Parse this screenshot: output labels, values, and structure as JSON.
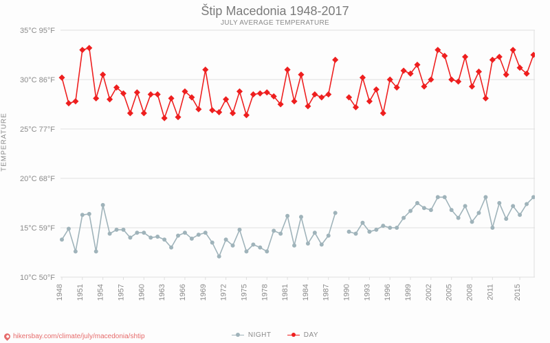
{
  "title": "Štip Macedonia 1948-2017",
  "subtitle": "JULY AVERAGE TEMPERATURE",
  "yaxis_label": "TEMPERATURE",
  "source_url": "hikersbay.com/climate/july/macedonia/shtip",
  "legend": {
    "night": "NIGHT",
    "day": "DAY"
  },
  "chart": {
    "type": "line",
    "background_color": "#fdfdfd",
    "grid_color": "#dedede",
    "title_color": "#7a7a7a",
    "label_color": "#8a8a8a",
    "title_fontsize": 18,
    "subtitle_fontsize": 10,
    "tick_fontsize": 11,
    "y": {
      "min": 10,
      "max": 35,
      "tick_step": 5,
      "ticks_c": [
        "10°C",
        "15°C",
        "20°C",
        "25°C",
        "30°C",
        "35°C"
      ],
      "ticks_f": [
        "50°F",
        "59°F",
        "68°F",
        "77°F",
        "86°F",
        "95°F"
      ]
    },
    "x": {
      "min": 1948,
      "max": 2017,
      "tick_years": [
        1948,
        1951,
        1954,
        1957,
        1960,
        1963,
        1966,
        1969,
        1972,
        1975,
        1978,
        1981,
        1984,
        1987,
        1990,
        1993,
        1996,
        1999,
        2002,
        2005,
        2008,
        2011,
        2015
      ]
    },
    "years": [
      1948,
      1949,
      1950,
      1951,
      1952,
      1953,
      1954,
      1955,
      1956,
      1957,
      1958,
      1959,
      1960,
      1961,
      1962,
      1963,
      1964,
      1965,
      1966,
      1967,
      1968,
      1969,
      1970,
      1971,
      1972,
      1973,
      1974,
      1975,
      1976,
      1977,
      1978,
      1979,
      1980,
      1981,
      1982,
      1983,
      1984,
      1985,
      1986,
      1987,
      1988,
      1989,
      1990,
      1991,
      1992,
      1993,
      1994,
      1995,
      1996,
      1997,
      1998,
      1999,
      2000,
      2001,
      2002,
      2003,
      2004,
      2005,
      2006,
      2007,
      2008,
      2009,
      2010,
      2011,
      2012,
      2013,
      2014,
      2015,
      2016,
      2017
    ],
    "series": {
      "day": {
        "label": "DAY",
        "color": "#ee1f1f",
        "marker": "diamond",
        "marker_size": 5,
        "line_width": 1.6,
        "values": [
          30.2,
          27.6,
          27.8,
          33.0,
          33.2,
          28.1,
          30.5,
          28.0,
          29.2,
          28.6,
          26.6,
          28.7,
          26.6,
          28.5,
          28.5,
          26.1,
          28.1,
          26.2,
          28.8,
          28.2,
          27.0,
          31.0,
          26.9,
          26.7,
          28.0,
          26.6,
          28.8,
          26.4,
          28.5,
          28.6,
          28.7,
          28.3,
          27.5,
          31.0,
          27.8,
          30.5,
          27.3,
          28.5,
          28.2,
          28.5,
          32.0,
          null,
          28.2,
          27.2,
          30.2,
          27.8,
          29.0,
          26.6,
          30.0,
          29.2,
          30.9,
          30.6,
          31.5,
          29.3,
          30.0,
          33.0,
          32.4,
          30.0,
          29.8,
          32.3,
          29.3,
          30.8,
          28.1,
          32.0,
          32.3,
          30.5,
          33.0,
          31.2,
          30.6,
          32.5
        ]
      },
      "night": {
        "label": "NIGHT",
        "color": "#9fb3ba",
        "marker": "circle",
        "marker_size": 4,
        "line_width": 1.6,
        "values": [
          13.8,
          14.9,
          12.6,
          16.3,
          16.4,
          12.6,
          17.3,
          14.4,
          14.8,
          14.8,
          14.0,
          14.5,
          14.5,
          14.0,
          14.1,
          13.8,
          13.0,
          14.2,
          14.5,
          13.9,
          14.3,
          14.5,
          13.5,
          12.1,
          13.8,
          13.2,
          14.8,
          12.6,
          13.3,
          13.0,
          12.6,
          14.7,
          14.4,
          16.2,
          13.2,
          16.1,
          13.4,
          14.5,
          13.3,
          14.2,
          16.5,
          null,
          14.6,
          14.4,
          15.5,
          14.6,
          14.8,
          15.2,
          15.0,
          15.0,
          16.0,
          16.7,
          17.5,
          17.0,
          16.8,
          18.1,
          18.1,
          16.8,
          16.0,
          17.2,
          15.6,
          16.5,
          18.1,
          15.0,
          17.5,
          15.9,
          17.2,
          16.3,
          17.4,
          18.1
        ]
      }
    }
  }
}
